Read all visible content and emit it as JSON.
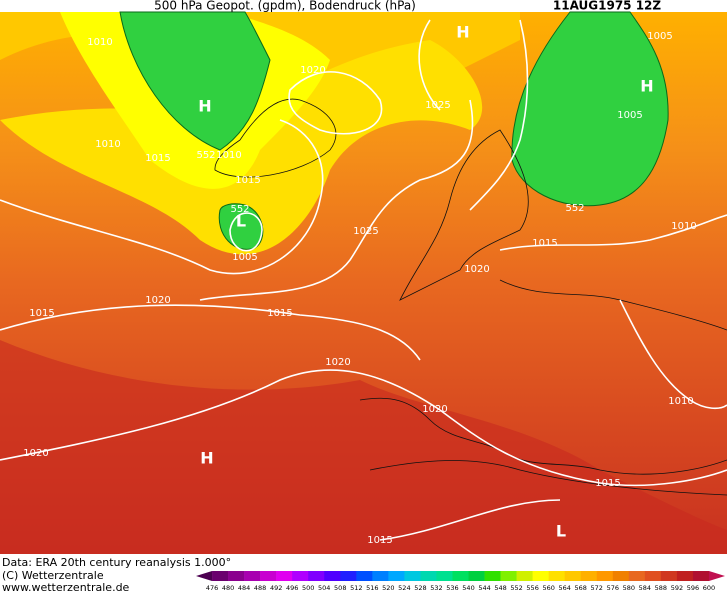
{
  "header": {
    "title": "500 hPa Geopot. (gpdm), Bodendruck (hPa)",
    "date": "11AUG1975 12Z"
  },
  "map": {
    "labels": [
      "1010",
      "1020",
      "1025",
      "1005",
      "1005",
      "1010",
      "1015",
      "552",
      "1010",
      "1015",
      "552",
      "1005",
      "1025",
      "1015",
      "1010",
      "1020",
      "1020",
      "1015",
      "1015",
      "1020",
      "1020",
      "1010",
      "1020",
      "1015",
      "1015",
      "552"
    ],
    "pressure_centers": [
      "H",
      "H",
      "H",
      "H",
      "L",
      "L"
    ]
  },
  "footer": {
    "source": "Data: ERA 20th century reanalysis 1.000°",
    "copyright": "(C) Wetterzentrale",
    "url": "www.wetterzentrale.de"
  },
  "colorbar": {
    "ticks": [
      476,
      480,
      484,
      488,
      492,
      496,
      500,
      504,
      508,
      512,
      516,
      520,
      524,
      528,
      532,
      536,
      540,
      544,
      548,
      552,
      556,
      560,
      564,
      568,
      572,
      576,
      580,
      584,
      588,
      592,
      596,
      600
    ],
    "colors": [
      "#4b0050",
      "#6a006e",
      "#8a008e",
      "#a800b0",
      "#c800d0",
      "#e000f0",
      "#b000ff",
      "#8000ff",
      "#5000ff",
      "#2020ff",
      "#0050ff",
      "#0080ff",
      "#00a8ff",
      "#00c8e0",
      "#00d8b0",
      "#00e090",
      "#00e060",
      "#00d040",
      "#30e000",
      "#80f000",
      "#d0f000",
      "#ffff00",
      "#ffe000",
      "#ffc800",
      "#ffb000",
      "#ff9800",
      "#f08000",
      "#e86820",
      "#e05020",
      "#d03820",
      "#c02020",
      "#b01030",
      "#c01050"
    ]
  }
}
